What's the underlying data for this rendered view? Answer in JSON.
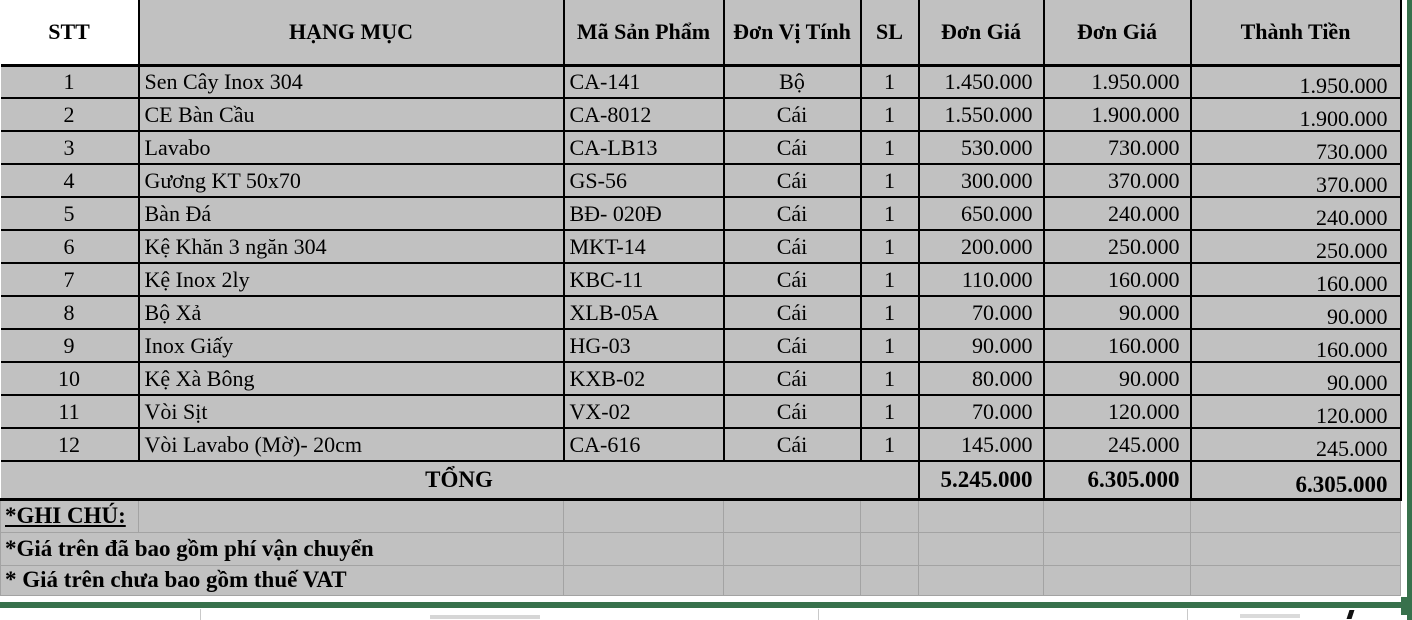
{
  "table": {
    "headers": [
      "STT",
      "HẠNG MỤC",
      "Mã Sản Phẩm",
      "Đơn Vị Tính",
      "SL",
      "Đơn Giá",
      "Đơn Giá",
      "Thành Tiền"
    ],
    "rows": [
      {
        "stt": "1",
        "item": "Sen Cây Inox 304",
        "code": "CA-141",
        "unit": "Bộ",
        "qty": "1",
        "price1": "1.450.000",
        "price2": "1.950.000",
        "total": "1.950.000"
      },
      {
        "stt": "2",
        "item": "CE Bàn Cầu",
        "code": "CA-8012",
        "unit": "Cái",
        "qty": "1",
        "price1": "1.550.000",
        "price2": "1.900.000",
        "total": "1.900.000"
      },
      {
        "stt": "3",
        "item": "Lavabo",
        "code": "CA-LB13",
        "unit": "Cái",
        "qty": "1",
        "price1": "530.000",
        "price2": "730.000",
        "total": "730.000"
      },
      {
        "stt": "4",
        "item": "Gương KT 50x70",
        "code": "GS-56",
        "unit": "Cái",
        "qty": "1",
        "price1": "300.000",
        "price2": "370.000",
        "total": "370.000"
      },
      {
        "stt": "5",
        "item": "Bàn Đá",
        "code": "BĐ- 020Đ",
        "unit": "Cái",
        "qty": "1",
        "price1": "650.000",
        "price2": "240.000",
        "total": "240.000"
      },
      {
        "stt": "6",
        "item": "Kệ Khăn 3 ngăn 304",
        "code": "MKT-14",
        "unit": "Cái",
        "qty": "1",
        "price1": "200.000",
        "price2": "250.000",
        "total": "250.000"
      },
      {
        "stt": "7",
        "item": "Kệ Inox 2ly",
        "code": "KBC-11",
        "unit": "Cái",
        "qty": "1",
        "price1": "110.000",
        "price2": "160.000",
        "total": "160.000"
      },
      {
        "stt": "8",
        "item": "Bộ Xả",
        "code": "XLB-05A",
        "unit": "Cái",
        "qty": "1",
        "price1": "70.000",
        "price2": "90.000",
        "total": "90.000"
      },
      {
        "stt": "9",
        "item": "Inox Giấy",
        "code": "HG-03",
        "unit": "Cái",
        "qty": "1",
        "price1": "90.000",
        "price2": "160.000",
        "total": "160.000"
      },
      {
        "stt": "10",
        "item": "Kệ Xà Bông",
        "code": "KXB-02",
        "unit": "Cái",
        "qty": "1",
        "price1": "80.000",
        "price2": "90.000",
        "total": "90.000"
      },
      {
        "stt": "11",
        "item": "Vòi Sịt",
        "code": "VX-02",
        "unit": "Cái",
        "qty": "1",
        "price1": "70.000",
        "price2": "120.000",
        "total": "120.000"
      },
      {
        "stt": "12",
        "item": "Vòi Lavabo (Mờ)- 20cm",
        "code": "CA-616",
        "unit": "Cái",
        "qty": "1",
        "price1": "145.000",
        "price2": "245.000",
        "total": "245.000"
      }
    ],
    "total_row": {
      "label": "TỔNG",
      "price1_sum": "5.245.000",
      "price2_sum": "6.305.000",
      "total_sum": "6.305.000"
    },
    "notes": {
      "title": "*GHI CHÚ: ",
      "note1": "*Giá trên đã bao gồm phí vận chuyển",
      "note2": "* Giá trên chưa bao gồm thuế VAT"
    }
  },
  "colors": {
    "cell_bg": "#c1c1c1",
    "header_stt_bg": "#ffffff",
    "border": "#000000",
    "faint_grid": "#a3a3a3",
    "pagebreak_green": "#38714c"
  }
}
